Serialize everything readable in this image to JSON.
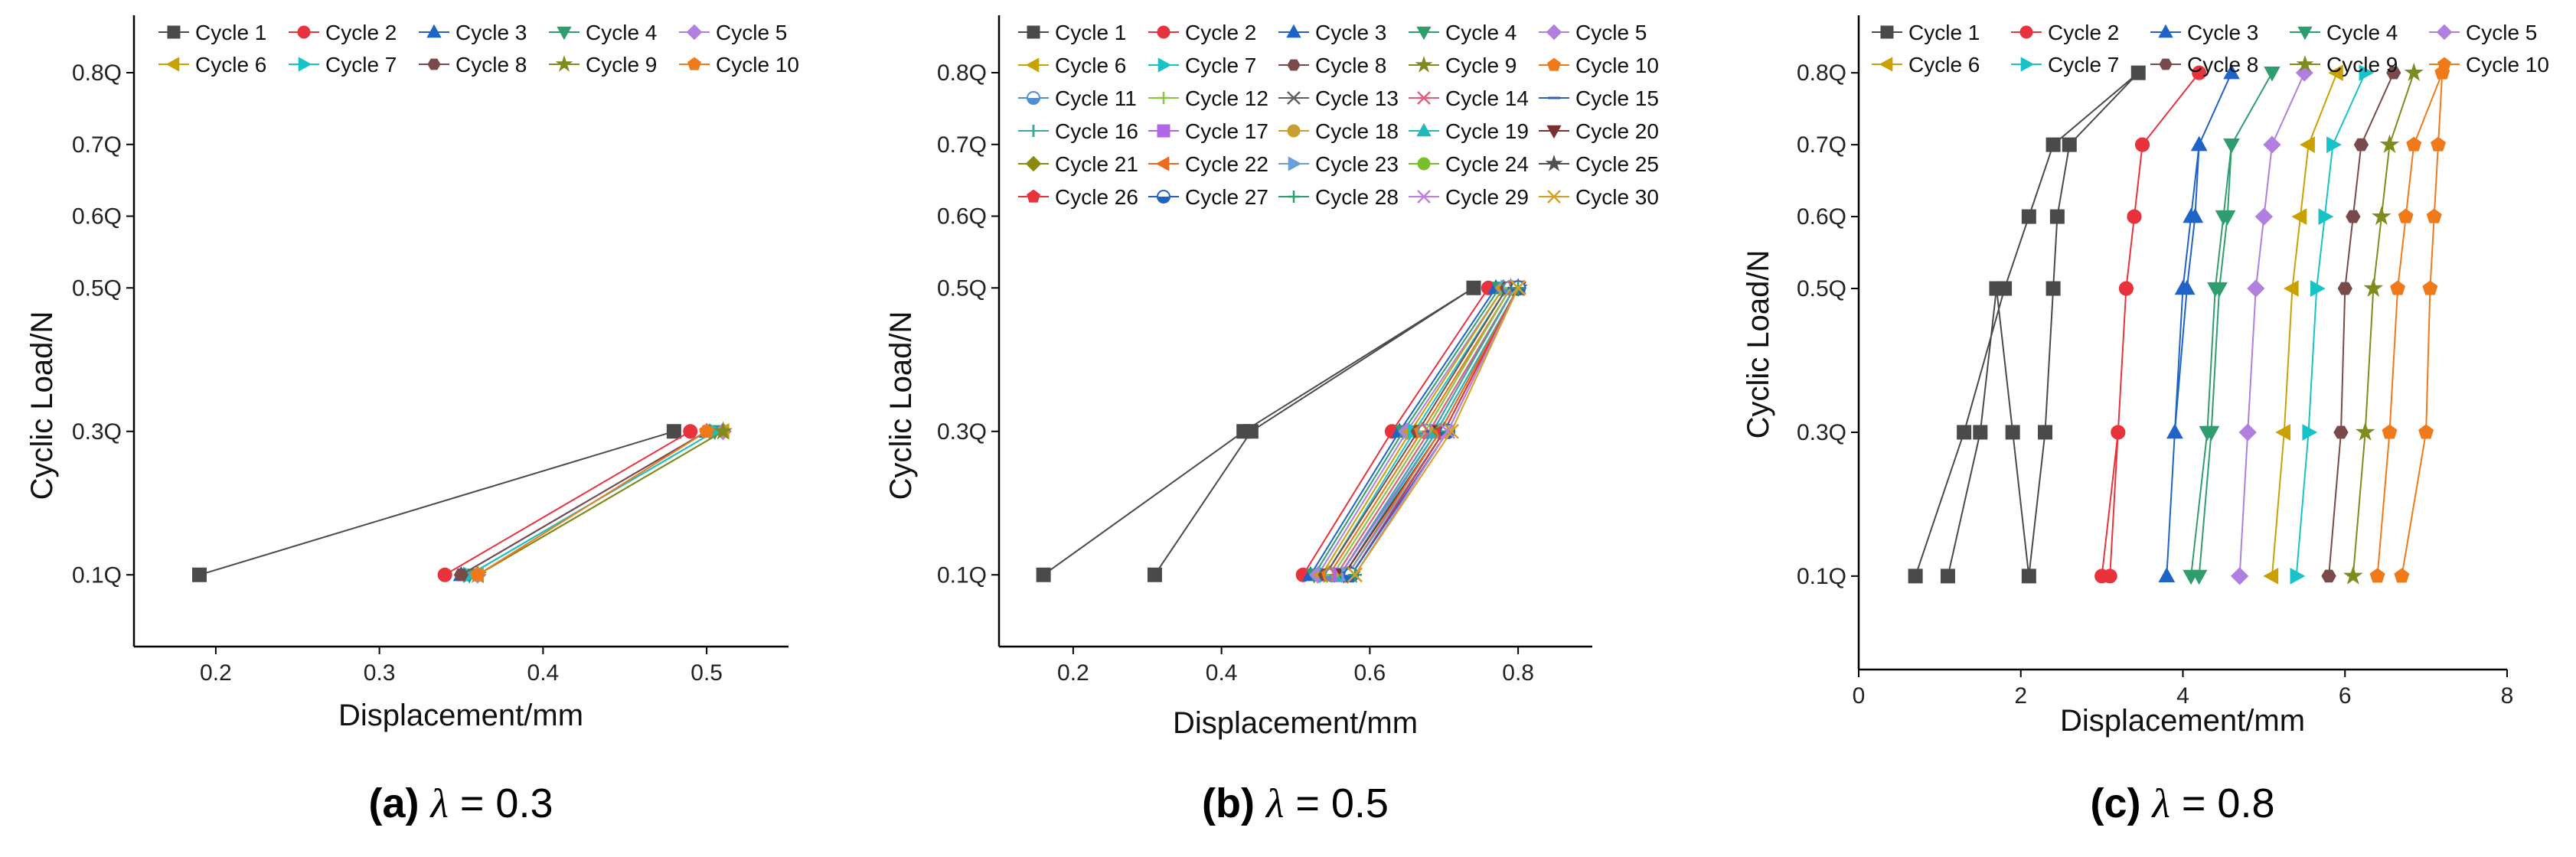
{
  "chart_data": [
    {
      "id": "a",
      "type": "line",
      "caption": {
        "label": "(a)",
        "symbol": "λ",
        "eq": " = 0.3"
      },
      "xlabel": "Displacement/mm",
      "ylabel": "Cyclic Load/N",
      "xlim": [
        0.15,
        0.55
      ],
      "ylim": [
        0.0,
        0.88
      ],
      "xticks": [
        0.2,
        0.3,
        0.4,
        0.5
      ],
      "xtick_labels": [
        "0.2",
        "0.3",
        "0.4",
        "0.5"
      ],
      "yticks": [
        0.1,
        0.3,
        0.5,
        0.6,
        0.7,
        0.8
      ],
      "ytick_labels": [
        "0.1Q",
        "0.3Q",
        "0.5Q",
        "0.6Q",
        "0.7Q",
        "0.8Q"
      ],
      "legend_columns": 5,
      "series": [
        {
          "name": "Cycle 1",
          "x": [
            0.19,
            0.48
          ],
          "y": [
            0.1,
            0.3
          ]
        },
        {
          "name": "Cycle 2",
          "x": [
            0.34,
            0.49
          ],
          "y": [
            0.1,
            0.3
          ]
        },
        {
          "name": "Cycle 3",
          "x": [
            0.35,
            0.5
          ],
          "y": [
            0.1,
            0.3
          ]
        },
        {
          "name": "Cycle 4",
          "x": [
            0.355,
            0.505
          ],
          "y": [
            0.1,
            0.3
          ]
        },
        {
          "name": "Cycle 5",
          "x": [
            0.36,
            0.51
          ],
          "y": [
            0.1,
            0.3
          ]
        },
        {
          "name": "Cycle 6",
          "x": [
            0.36,
            0.51
          ],
          "y": [
            0.1,
            0.3
          ]
        },
        {
          "name": "Cycle 7",
          "x": [
            0.355,
            0.505
          ],
          "y": [
            0.1,
            0.3
          ]
        },
        {
          "name": "Cycle 8",
          "x": [
            0.35,
            0.5
          ],
          "y": [
            0.1,
            0.3
          ]
        },
        {
          "name": "Cycle 9",
          "x": [
            0.36,
            0.51
          ],
          "y": [
            0.1,
            0.3
          ]
        },
        {
          "name": "Cycle 10",
          "x": [
            0.36,
            0.5
          ],
          "y": [
            0.1,
            0.3
          ]
        }
      ]
    },
    {
      "id": "b",
      "type": "line",
      "caption": {
        "label": "(b)",
        "symbol": "λ",
        "eq": " = 0.5"
      },
      "xlabel": "Displacement/mm",
      "ylabel": "Cyclic Load/N",
      "xlim": [
        0.1,
        0.9
      ],
      "ylim": [
        0.0,
        0.88
      ],
      "xticks": [
        0.2,
        0.4,
        0.6,
        0.8
      ],
      "xtick_labels": [
        "0.2",
        "0.4",
        "0.6",
        "0.8"
      ],
      "yticks": [
        0.1,
        0.3,
        0.5,
        0.6,
        0.7,
        0.8
      ],
      "ytick_labels": [
        "0.1Q",
        "0.3Q",
        "0.5Q",
        "0.6Q",
        "0.7Q",
        "0.8Q"
      ],
      "legend_columns": 5,
      "series": [
        {
          "name": "Cycle 1",
          "x": [
            0.16,
            0.43,
            0.74,
            0.44,
            0.31
          ],
          "y": [
            0.1,
            0.3,
            0.5,
            0.3,
            0.1
          ]
        },
        {
          "name": "Cycle 2",
          "x": [
            0.51,
            0.63,
            0.76
          ],
          "y": [
            0.1,
            0.3,
            0.5
          ]
        },
        {
          "name": "Cycle 3",
          "x": [
            0.52,
            0.64,
            0.77
          ],
          "y": [
            0.1,
            0.3,
            0.5
          ]
        },
        {
          "name": "Cycle 4",
          "x": [
            0.525,
            0.645,
            0.775
          ],
          "y": [
            0.1,
            0.3,
            0.5
          ]
        },
        {
          "name": "Cycle 5",
          "x": [
            0.53,
            0.65,
            0.78
          ],
          "y": [
            0.1,
            0.3,
            0.5
          ]
        },
        {
          "name": "Cycle 6",
          "x": [
            0.535,
            0.655,
            0.78
          ],
          "y": [
            0.1,
            0.3,
            0.5
          ]
        },
        {
          "name": "Cycle 7",
          "x": [
            0.54,
            0.66,
            0.785
          ],
          "y": [
            0.1,
            0.3,
            0.5
          ]
        },
        {
          "name": "Cycle 8",
          "x": [
            0.54,
            0.665,
            0.785
          ],
          "y": [
            0.1,
            0.3,
            0.5
          ]
        },
        {
          "name": "Cycle 9",
          "x": [
            0.545,
            0.67,
            0.79
          ],
          "y": [
            0.1,
            0.3,
            0.5
          ]
        },
        {
          "name": "Cycle 10",
          "x": [
            0.545,
            0.67,
            0.79
          ],
          "y": [
            0.1,
            0.3,
            0.5
          ]
        },
        {
          "name": "Cycle 11",
          "x": [
            0.55,
            0.675,
            0.79
          ],
          "y": [
            0.1,
            0.3,
            0.5
          ]
        },
        {
          "name": "Cycle 12",
          "x": [
            0.55,
            0.675,
            0.79
          ],
          "y": [
            0.1,
            0.3,
            0.5
          ]
        },
        {
          "name": "Cycle 13",
          "x": [
            0.555,
            0.68,
            0.795
          ],
          "y": [
            0.1,
            0.3,
            0.5
          ]
        },
        {
          "name": "Cycle 14",
          "x": [
            0.555,
            0.68,
            0.795
          ],
          "y": [
            0.1,
            0.3,
            0.5
          ]
        },
        {
          "name": "Cycle 15",
          "x": [
            0.56,
            0.685,
            0.795
          ],
          "y": [
            0.1,
            0.3,
            0.5
          ]
        },
        {
          "name": "Cycle 16",
          "x": [
            0.56,
            0.685,
            0.795
          ],
          "y": [
            0.1,
            0.3,
            0.5
          ]
        },
        {
          "name": "Cycle 17",
          "x": [
            0.56,
            0.69,
            0.8
          ],
          "y": [
            0.1,
            0.3,
            0.5
          ]
        },
        {
          "name": "Cycle 18",
          "x": [
            0.565,
            0.69,
            0.8
          ],
          "y": [
            0.1,
            0.3,
            0.5
          ]
        },
        {
          "name": "Cycle 19",
          "x": [
            0.565,
            0.69,
            0.8
          ],
          "y": [
            0.1,
            0.3,
            0.5
          ]
        },
        {
          "name": "Cycle 20",
          "x": [
            0.565,
            0.695,
            0.8
          ],
          "y": [
            0.1,
            0.3,
            0.5
          ]
        },
        {
          "name": "Cycle 21",
          "x": [
            0.57,
            0.695,
            0.8
          ],
          "y": [
            0.1,
            0.3,
            0.5
          ]
        },
        {
          "name": "Cycle 22",
          "x": [
            0.57,
            0.695,
            0.8
          ],
          "y": [
            0.1,
            0.3,
            0.5
          ]
        },
        {
          "name": "Cycle 23",
          "x": [
            0.57,
            0.7,
            0.8
          ],
          "y": [
            0.1,
            0.3,
            0.5
          ]
        },
        {
          "name": "Cycle 24",
          "x": [
            0.575,
            0.7,
            0.8
          ],
          "y": [
            0.1,
            0.3,
            0.5
          ]
        },
        {
          "name": "Cycle 25",
          "x": [
            0.575,
            0.7,
            0.8
          ],
          "y": [
            0.1,
            0.3,
            0.5
          ]
        },
        {
          "name": "Cycle 26",
          "x": [
            0.575,
            0.7,
            0.8
          ],
          "y": [
            0.1,
            0.3,
            0.5
          ]
        },
        {
          "name": "Cycle 27",
          "x": [
            0.575,
            0.705,
            0.8
          ],
          "y": [
            0.1,
            0.3,
            0.5
          ]
        },
        {
          "name": "Cycle 28",
          "x": [
            0.58,
            0.705,
            0.8
          ],
          "y": [
            0.1,
            0.3,
            0.5
          ]
        },
        {
          "name": "Cycle 29",
          "x": [
            0.58,
            0.705,
            0.8
          ],
          "y": [
            0.1,
            0.3,
            0.5
          ]
        },
        {
          "name": "Cycle 30",
          "x": [
            0.58,
            0.71,
            0.8
          ],
          "y": [
            0.1,
            0.3,
            0.5
          ]
        }
      ]
    },
    {
      "id": "c",
      "type": "line",
      "caption": {
        "label": "(c)",
        "symbol": "λ",
        "eq": " = 0.8"
      },
      "xlabel": "Displacement/mm",
      "ylabel": "Cyclic Load/N",
      "xlim": [
        0,
        8
      ],
      "ylim": [
        -0.03,
        0.88
      ],
      "xticks": [
        0,
        2,
        4,
        6,
        8
      ],
      "xtick_labels": [
        "0",
        "2",
        "4",
        "6",
        "8"
      ],
      "yticks": [
        0.1,
        0.3,
        0.5,
        0.6,
        0.7,
        0.8
      ],
      "ytick_labels": [
        "0.1Q",
        "0.3Q",
        "0.5Q",
        "0.6Q",
        "0.7Q",
        "0.8Q"
      ],
      "legend_columns": 5,
      "series": [
        {
          "name": "Cycle 1",
          "x": [
            0.7,
            1.3,
            1.8,
            2.1,
            2.4,
            3.45,
            2.6,
            2.45,
            2.4,
            2.3,
            2.1,
            1.9,
            1.7,
            1.5,
            1.1
          ],
          "y": [
            0.1,
            0.3,
            0.5,
            0.6,
            0.7,
            0.8,
            0.7,
            0.6,
            0.5,
            0.3,
            0.1,
            0.3,
            0.5,
            0.3,
            0.1
          ]
        },
        {
          "name": "Cycle 2",
          "x": [
            3.0,
            3.2,
            3.3,
            3.4,
            3.5,
            4.2,
            3.5,
            3.4,
            3.3,
            3.2,
            3.1
          ],
          "y": [
            0.1,
            0.3,
            0.5,
            0.6,
            0.7,
            0.8,
            0.7,
            0.6,
            0.5,
            0.3,
            0.1
          ]
        },
        {
          "name": "Cycle 3",
          "x": [
            3.8,
            3.9,
            4.05,
            4.15,
            4.2,
            4.6,
            4.2,
            4.1,
            4.0,
            3.9,
            3.8
          ],
          "y": [
            0.1,
            0.3,
            0.5,
            0.6,
            0.7,
            0.8,
            0.7,
            0.6,
            0.5,
            0.3,
            0.1
          ]
        },
        {
          "name": "Cycle 4",
          "x": [
            4.2,
            4.35,
            4.45,
            4.55,
            4.6,
            5.1,
            4.6,
            4.5,
            4.4,
            4.3,
            4.1
          ],
          "y": [
            0.1,
            0.3,
            0.5,
            0.6,
            0.7,
            0.8,
            0.7,
            0.6,
            0.5,
            0.3,
            0.1
          ]
        },
        {
          "name": "Cycle 5",
          "x": [
            4.7,
            4.8,
            4.9,
            5.0,
            5.1,
            5.5,
            5.1,
            5.0,
            4.9,
            4.8,
            4.7
          ],
          "y": [
            0.1,
            0.3,
            0.5,
            0.6,
            0.7,
            0.8,
            0.7,
            0.6,
            0.5,
            0.3,
            0.1
          ]
        },
        {
          "name": "Cycle 6",
          "x": [
            5.1,
            5.25,
            5.35,
            5.45,
            5.55,
            5.9,
            5.55,
            5.45,
            5.35,
            5.25,
            5.1
          ],
          "y": [
            0.1,
            0.3,
            0.5,
            0.6,
            0.7,
            0.8,
            0.7,
            0.6,
            0.5,
            0.3,
            0.1
          ]
        },
        {
          "name": "Cycle 7",
          "x": [
            5.4,
            5.55,
            5.65,
            5.75,
            5.85,
            6.25,
            5.85,
            5.75,
            5.65,
            5.55,
            5.4
          ],
          "y": [
            0.1,
            0.3,
            0.5,
            0.6,
            0.7,
            0.8,
            0.7,
            0.6,
            0.5,
            0.3,
            0.1
          ]
        },
        {
          "name": "Cycle 8",
          "x": [
            5.8,
            5.95,
            6.0,
            6.1,
            6.2,
            6.6,
            6.2,
            6.1,
            6.0,
            5.95,
            5.8
          ],
          "y": [
            0.1,
            0.3,
            0.5,
            0.6,
            0.7,
            0.8,
            0.7,
            0.6,
            0.5,
            0.3,
            0.1
          ]
        },
        {
          "name": "Cycle 9",
          "x": [
            6.1,
            6.25,
            6.35,
            6.45,
            6.55,
            6.85,
            6.55,
            6.45,
            6.35,
            6.25,
            6.1
          ],
          "y": [
            0.1,
            0.3,
            0.5,
            0.6,
            0.7,
            0.8,
            0.7,
            0.6,
            0.5,
            0.3,
            0.1
          ]
        },
        {
          "name": "Cycle 10",
          "x": [
            6.4,
            6.55,
            6.65,
            6.75,
            6.85,
            7.2,
            7.15,
            7.1,
            7.05,
            7.0,
            6.7
          ],
          "y": [
            0.1,
            0.3,
            0.5,
            0.6,
            0.7,
            0.8,
            0.7,
            0.6,
            0.5,
            0.3,
            0.1
          ]
        }
      ]
    }
  ],
  "styles": [
    {
      "color": "#4a4a4a",
      "marker": "square"
    },
    {
      "color": "#e8323c",
      "marker": "circle"
    },
    {
      "color": "#1f63c6",
      "marker": "triangle-up"
    },
    {
      "color": "#2f9e6e",
      "marker": "triangle-down"
    },
    {
      "color": "#b07fdf",
      "marker": "diamond"
    },
    {
      "color": "#c9a100",
      "marker": "triangle-left"
    },
    {
      "color": "#17c3c7",
      "marker": "triangle-right"
    },
    {
      "color": "#7a4a4a",
      "marker": "hexagon"
    },
    {
      "color": "#7f8c1d",
      "marker": "star"
    },
    {
      "color": "#f07a1a",
      "marker": "pentagon"
    },
    {
      "color": "#4f8fd0",
      "marker": "circle-half"
    },
    {
      "color": "#88c840",
      "marker": "plus"
    },
    {
      "color": "#606060",
      "marker": "x"
    },
    {
      "color": "#e0607a",
      "marker": "asterisk"
    },
    {
      "color": "#3060b0",
      "marker": "minus"
    },
    {
      "color": "#3aa6a6",
      "marker": "bar"
    },
    {
      "color": "#b066e6",
      "marker": "square"
    },
    {
      "color": "#c8a030",
      "marker": "circle"
    },
    {
      "color": "#20b8b8",
      "marker": "triangle-up"
    },
    {
      "color": "#7a3030",
      "marker": "triangle-down"
    },
    {
      "color": "#8a8a10",
      "marker": "diamond"
    },
    {
      "color": "#ee6a22",
      "marker": "triangle-left"
    },
    {
      "color": "#6a9fd8",
      "marker": "triangle-right"
    },
    {
      "color": "#78c028",
      "marker": "circle"
    },
    {
      "color": "#505050",
      "marker": "star"
    },
    {
      "color": "#e8323c",
      "marker": "pentagon"
    },
    {
      "color": "#1f63c6",
      "marker": "circle-half"
    },
    {
      "color": "#2f9e6e",
      "marker": "plus"
    },
    {
      "color": "#c080e0",
      "marker": "x"
    },
    {
      "color": "#d8a020",
      "marker": "x"
    }
  ]
}
